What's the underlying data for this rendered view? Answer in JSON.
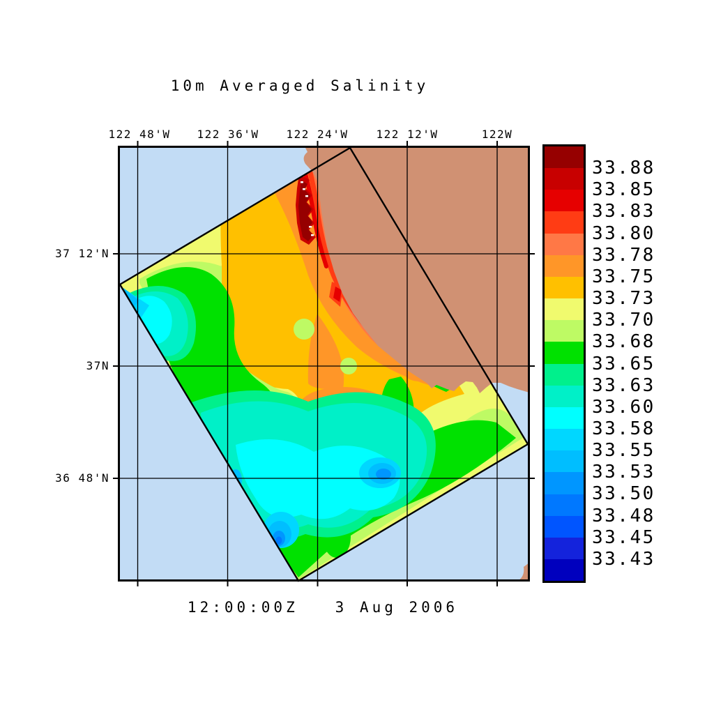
{
  "title": "10m Averaged Salinity",
  "timestamp": "12:00:00Z   3 Aug 2006",
  "axes": {
    "top_labels": [
      "122 48'W",
      "122 36'W",
      "122 24'W",
      "122 12'W",
      "122W"
    ],
    "left_labels": [
      "37 12'N",
      "37N",
      "36 48'N"
    ]
  },
  "colorbar": {
    "labels": [
      "33.88",
      "33.85",
      "33.83",
      "33.80",
      "33.78",
      "33.75",
      "33.73",
      "33.70",
      "33.68",
      "33.65",
      "33.63",
      "33.60",
      "33.58",
      "33.55",
      "33.53",
      "33.50",
      "33.48",
      "33.45",
      "33.43"
    ],
    "colors_top_to_bottom": [
      "#960000",
      "#C80000",
      "#E60000",
      "#FF3C14",
      "#FF7846",
      "#FF9628",
      "#FFC000",
      "#F0FA6E",
      "#BEFA64",
      "#00E100",
      "#00F08C",
      "#00F0C8",
      "#00FFFF",
      "#00D7FF",
      "#00BEFF",
      "#0096FF",
      "#0078FF",
      "#0055FF",
      "#1423DC",
      "#0000BE"
    ]
  },
  "colors": {
    "ocean": "#C2DCF5",
    "land": "#D09173",
    "frame": "#000000",
    "background": "#FFFFFF"
  },
  "chart_data": {
    "type": "heatmap",
    "title": "10m Averaged Salinity",
    "subtitle": "12:00:00Z   3 Aug 2006",
    "x_ticks": [
      "122 48'W",
      "122 36'W",
      "122 24'W",
      "122 12'W",
      "122W"
    ],
    "y_ticks": [
      "37 12'N",
      "37N",
      "36 48'N"
    ],
    "colorbar_levels_low_to_high": [
      33.43,
      33.45,
      33.48,
      33.5,
      33.53,
      33.55,
      33.58,
      33.6,
      33.63,
      33.65,
      33.68,
      33.7,
      33.73,
      33.75,
      33.78,
      33.8,
      33.83,
      33.85,
      33.88
    ],
    "colorbar_colors_low_to_high": [
      "#0000BE",
      "#1423DC",
      "#0055FF",
      "#0078FF",
      "#0096FF",
      "#00BEFF",
      "#00D7FF",
      "#00FFFF",
      "#00F0C8",
      "#00F08C",
      "#00E100",
      "#BEFA64",
      "#F0FA6E",
      "#FFC000",
      "#FF9628",
      "#FF7846",
      "#FF3C14",
      "#E60000",
      "#C80000",
      "#960000"
    ],
    "legend_position": "right",
    "grid": true,
    "overlay": "rotated rectangular model-domain outline (~31 deg tilt) over a Monterey Bay area coastal map; land tan, ocean light blue",
    "field_features": [
      {
        "region": "nearshore strip along coast north of 37N",
        "salinity": "33.80-33.88"
      },
      {
        "region": "upper-center of model domain",
        "salinity": "33.73-33.78"
      },
      {
        "region": "broad mid-domain band",
        "salinity": "33.68-33.73"
      },
      {
        "region": "western edge and lower-left of domain",
        "salinity": "33.58-33.65"
      },
      {
        "region": "offshore eddy center-south of domain",
        "salinity": "33.50-33.55"
      },
      {
        "region": "small eddy near southern corner of domain",
        "salinity": "33.45-33.53"
      }
    ]
  }
}
